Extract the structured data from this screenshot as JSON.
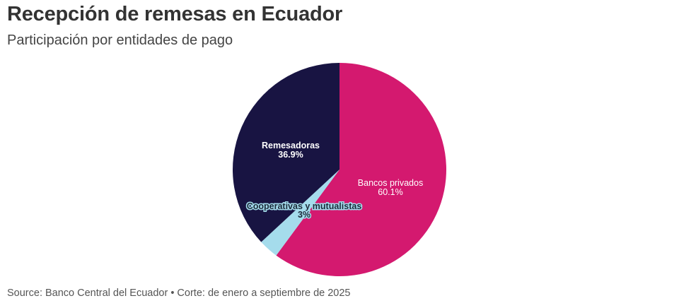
{
  "header": {
    "title": "Recepción de remesas en Ecuador",
    "subtitle": "Participación por entidades de pago"
  },
  "footer": {
    "source": "Source: Banco Central del Ecuador • Corte: de enero a septiembre de 2025"
  },
  "chart_data": {
    "type": "pie",
    "title": "Recepción de remesas en Ecuador",
    "subtitle": "Participación por entidades de pago",
    "categories": [
      "Bancos privados",
      "Cooperativas y mutualistas",
      "Remesadoras"
    ],
    "values": [
      60.1,
      3,
      36.9
    ],
    "labels": [
      "60.1%",
      "3%",
      "36.9%"
    ],
    "colors": [
      "#d4196f",
      "#a5dcec",
      "#181442"
    ],
    "start_angle": "12 o'clock, clockwise",
    "legend": "none (direct labels)"
  },
  "labels": {
    "bancos": {
      "name": "Bancos privados",
      "pct": "60.1%"
    },
    "coop": {
      "name": "Cooperativas y mutualistas",
      "pct": "3%"
    },
    "remes": {
      "name": "Remesadoras",
      "pct": "36.9%"
    }
  }
}
